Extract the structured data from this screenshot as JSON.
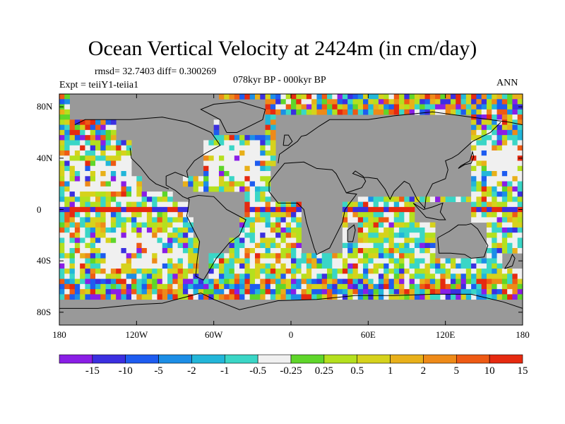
{
  "title": "Ocean Vertical Velocity at 2424m (in cm/day)",
  "stats": "rmsd= 32.7403 diff= 0.300269",
  "experiment": "Expt = teiiY1-teiia1",
  "period": "078kyr BP - 000kyr BP",
  "season": "ANN",
  "map": {
    "projection": "cylindrical equidistant",
    "lon_range": [
      -180,
      180
    ],
    "lat_range": [
      -90,
      90
    ],
    "land_color": "#999999",
    "lat_ticks": [
      {
        "value": 80,
        "label": "80N"
      },
      {
        "value": 40,
        "label": "40N"
      },
      {
        "value": 0,
        "label": "0"
      },
      {
        "value": -40,
        "label": "40S"
      },
      {
        "value": -80,
        "label": "80S"
      }
    ],
    "lon_ticks": [
      {
        "value": -180,
        "label": "180"
      },
      {
        "value": -120,
        "label": "120W"
      },
      {
        "value": -60,
        "label": "60W"
      },
      {
        "value": 0,
        "label": "0"
      },
      {
        "value": 60,
        "label": "60E"
      },
      {
        "value": 120,
        "label": "120E"
      },
      {
        "value": 180,
        "label": "180"
      }
    ]
  },
  "colorbar": {
    "colors": [
      "#8a1ee6",
      "#3b2fe0",
      "#1e5cf0",
      "#1c8ee6",
      "#22b6d9",
      "#3ad6c6",
      "#f0f0f0",
      "#5fd62a",
      "#b4e01e",
      "#d6d21c",
      "#e8b01a",
      "#ee8a18",
      "#ee5a14",
      "#e62a10"
    ],
    "labels": [
      "-15",
      "-10",
      "-5",
      "-2",
      "-1",
      "-0.5",
      "-0.25",
      "0.25",
      "0.5",
      "1",
      "2",
      "5",
      "10",
      "15"
    ]
  }
}
